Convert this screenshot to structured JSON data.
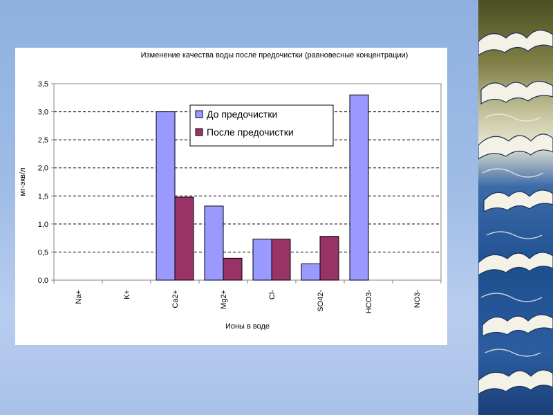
{
  "slide": {
    "background_color": "#9fbce6",
    "decoration_icon": "great-wave-icon"
  },
  "chart_data": {
    "type": "bar",
    "title": "Изменение качества воды после предочистки (равновесные концентрации)",
    "xlabel": "Ионы в воде",
    "ylabel": "мг-экв/л",
    "categories": [
      "Na+",
      "K+",
      "Ca2+",
      "Mg2+",
      "Cl-",
      "SO42-",
      "HCO3-",
      "NO3-"
    ],
    "series": [
      {
        "name": "До предочистки",
        "color": "#9999ff",
        "values": [
          0,
          0,
          3.0,
          1.32,
          0.73,
          0.29,
          3.3,
          0
        ]
      },
      {
        "name": "После предочистки",
        "color": "#993366",
        "values": [
          0,
          0,
          1.48,
          0.39,
          0.73,
          0.78,
          0,
          0
        ]
      }
    ],
    "ylim": [
      0,
      3.5
    ],
    "yticks": [
      "0,0",
      "0,5",
      "1,0",
      "1,5",
      "2,0",
      "2,5",
      "3,0",
      "3,5"
    ],
    "grid": true,
    "legend_position": "top-center"
  }
}
